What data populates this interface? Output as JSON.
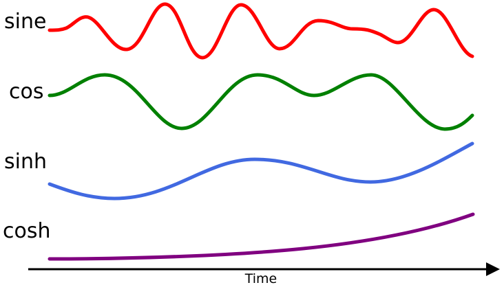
{
  "rows": [
    {
      "label": "sine",
      "color": "#ff0000",
      "shape": "irregular-oscillation"
    },
    {
      "label": "cos",
      "color": "#008000",
      "shape": "smooth-oscillation"
    },
    {
      "label": "sinh",
      "color": "#4169e1",
      "shape": "slow-wave-rising"
    },
    {
      "label": "cosh",
      "color": "#800080",
      "shape": "exponential-growth"
    }
  ],
  "axis": {
    "label": "Time",
    "color": "#000000"
  }
}
